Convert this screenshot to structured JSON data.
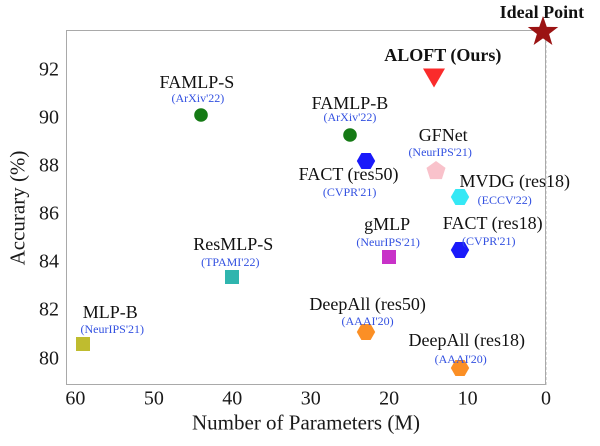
{
  "chart_data": {
    "type": "scatter",
    "title": "",
    "xlabel": "Number of Parameters (M)",
    "ylabel": "Accurary (%)",
    "x_ticks": [
      60,
      50,
      40,
      30,
      20,
      10,
      0
    ],
    "y_ticks": [
      80,
      82,
      84,
      86,
      88,
      90,
      92
    ],
    "xlim": [
      61.2,
      0
    ],
    "ylim": [
      78.9,
      93.65
    ],
    "x_axis_reversed": true,
    "grid": "dashed",
    "grid_color": "#dcdcdc",
    "venue_text_color": "#3351e1",
    "points": [
      {
        "name": "MLP-B",
        "venue": "(NeurIPS'21)",
        "x": 59,
        "y": 80.6,
        "marker": "square",
        "color": "#bfbc2f",
        "bold": false,
        "name_dx": 27,
        "name_dy": -32,
        "venue_dx": 29,
        "venue_dy": -15
      },
      {
        "name": "ResMLP-S",
        "venue": "(TPAMI'22)",
        "x": 40,
        "y": 83.4,
        "marker": "square",
        "color": "#2fb5ae",
        "bold": false,
        "name_dx": 1,
        "name_dy": -33,
        "venue_dx": -2,
        "venue_dy": -15
      },
      {
        "name": "FAMLP-S",
        "venue": "(ArXiv'22)",
        "x": 44,
        "y": 90.1,
        "marker": "circle",
        "color": "#157a15",
        "bold": false,
        "name_dx": -4,
        "name_dy": -33,
        "venue_dx": -3,
        "venue_dy": -17
      },
      {
        "name": "FAMLP-B",
        "venue": "(ArXiv'22)",
        "x": 25,
        "y": 89.3,
        "marker": "circle",
        "color": "#157a15",
        "bold": false,
        "name_dx": 0,
        "name_dy": -32,
        "venue_dx": 0,
        "venue_dy": -18
      },
      {
        "name": "FACT (res50)",
        "venue": "(CVPR'21)",
        "x": 23,
        "y": 88.2,
        "marker": "hexagon",
        "color": "#1a1afa",
        "bold": false,
        "name_dx": -17,
        "name_dy": 13,
        "venue_dx": -16,
        "venue_dy": 31
      },
      {
        "name": "GFNet",
        "venue": "(NeurIPS'21)",
        "x": 14,
        "y": 87.8,
        "marker": "pentagon",
        "color": "#f9c2cb",
        "bold": false,
        "name_dx": 7,
        "name_dy": -36,
        "venue_dx": 4,
        "venue_dy": -19
      },
      {
        "name": "MVDG (res18)",
        "venue": "(ECCV'22)",
        "x": 11,
        "y": 86.7,
        "marker": "hexagon",
        "color": "#35e8f5",
        "bold": false,
        "name_dx": 55,
        "name_dy": -16,
        "venue_dx": 45,
        "venue_dy": 3
      },
      {
        "name": "FACT (res18)",
        "venue": "(CVPR'21)",
        "x": 11,
        "y": 84.5,
        "marker": "hexagon",
        "color": "#1a1afa",
        "bold": false,
        "name_dx": 33,
        "name_dy": -27,
        "venue_dx": 29,
        "venue_dy": -9
      },
      {
        "name": "gMLP",
        "venue": "(NeurIPS'21)",
        "x": 20,
        "y": 84.2,
        "marker": "square",
        "color": "#c832c8",
        "bold": false,
        "name_dx": -2,
        "name_dy": -33,
        "venue_dx": -1,
        "venue_dy": -15
      },
      {
        "name": "DeepAll (res50)",
        "venue": "(AAAI'20)",
        "x": 23,
        "y": 81.1,
        "marker": "hexagon",
        "color": "#fb8f25",
        "bold": false,
        "name_dx": 2,
        "name_dy": -28,
        "venue_dx": 2,
        "venue_dy": -11
      },
      {
        "name": "DeepAll (res18)",
        "venue": "(AAAI'20)",
        "x": 11,
        "y": 79.6,
        "marker": "hexagon",
        "color": "#fb8f25",
        "bold": false,
        "name_dx": 7,
        "name_dy": -28,
        "venue_dx": 1,
        "venue_dy": -9
      },
      {
        "name": "ALOFT (Ours)",
        "venue": "",
        "x": 14.3,
        "y": 91.7,
        "marker": "triangle-down",
        "color": "#fa2b2b",
        "bold": true,
        "name_dx": 9,
        "name_dy": -22,
        "venue_dx": 0,
        "venue_dy": 0
      },
      {
        "name": "Ideal Point",
        "venue": "",
        "x": 0.4,
        "y": 93.55,
        "marker": "star",
        "color": "#9b1313",
        "bold": true,
        "name_dx": -1,
        "name_dy": -20,
        "venue_dx": 0,
        "venue_dy": 0
      }
    ]
  }
}
